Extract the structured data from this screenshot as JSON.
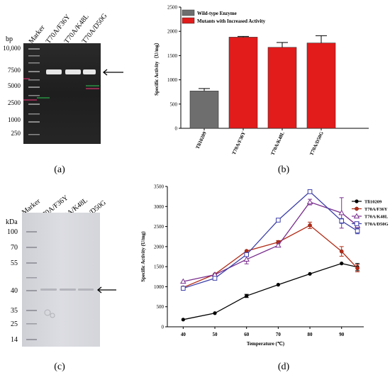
{
  "panels": {
    "a": {
      "caption": "(a)",
      "bp_label": "bp",
      "lane_labels": [
        "Marker",
        "T70A/F36Y",
        "T70A/K48L",
        "T70A/D50G"
      ],
      "marker_sizes": [
        "10,000",
        "7500",
        "5000",
        "2500",
        "1000",
        "250"
      ]
    },
    "b": {
      "caption": "(b)",
      "legend": [
        "Wild-type Enzyme",
        "Mutants with Increased Activity"
      ]
    },
    "c": {
      "caption": "(c)",
      "kda_label": "kDa",
      "lane_labels": [
        "Marker",
        "T70A/F36Y",
        "T70A/K48L",
        "T70A/D50G"
      ],
      "marker_sizes": [
        "100",
        "70",
        "55",
        "40",
        "35",
        "25",
        "14"
      ]
    },
    "d": {
      "caption": "(d)"
    }
  },
  "colors": {
    "wild": "#6e6e6e",
    "mutant": "#e21b1b",
    "s1": "#000000",
    "s2": "#b22c17",
    "s3": "#7a2f8f",
    "s4": "#3d3fa8"
  },
  "chart_data": [
    {
      "type": "bar",
      "categories": [
        "Tli10209",
        "T70A/F36Y",
        "T70A/K48L",
        "T70A/D50G"
      ],
      "values": [
        770,
        1880,
        1670,
        1760
      ],
      "errors": [
        50,
        15,
        100,
        150
      ],
      "ylabel": "Specific Activity（U/mg）",
      "xlabel": "",
      "title": "",
      "ylim": [
        0,
        2500
      ],
      "yticks": [
        0,
        500,
        1000,
        1500,
        2000,
        2500
      ],
      "legend": "top-left"
    },
    {
      "type": "line",
      "x": [
        40,
        50,
        60,
        70,
        80,
        90,
        95
      ],
      "xlabel": "Temperature (℃)",
      "ylabel": "Specific Activity (U/mg)",
      "title": "",
      "xlim": [
        35,
        97
      ],
      "ylim": [
        0,
        3500
      ],
      "xticks": [
        40,
        50,
        60,
        70,
        80,
        90
      ],
      "yticks": [
        0,
        500,
        1000,
        1500,
        2000,
        2500,
        3000,
        3500
      ],
      "legend": "top-right",
      "series": [
        {
          "name": "Tli10209",
          "values": [
            180,
            340,
            770,
            1050,
            1320,
            1580,
            1490
          ],
          "errors": [
            0,
            0,
            40,
            0,
            0,
            0,
            90
          ]
        },
        {
          "name": "T70A/F36Y",
          "values": [
            980,
            1310,
            1890,
            2110,
            2530,
            1880,
            1460
          ],
          "errors": [
            0,
            0,
            0,
            40,
            80,
            120,
            90
          ]
        },
        {
          "name": "T70A/K48L",
          "values": [
            1130,
            1300,
            1680,
            2030,
            3110,
            2840,
            2520
          ],
          "errors": [
            0,
            0,
            110,
            0,
            70,
            380,
            90
          ]
        },
        {
          "name": "T70A/D50G",
          "values": [
            960,
            1210,
            1800,
            2660,
            3370,
            2640,
            2390
          ],
          "errors": [
            0,
            0,
            0,
            0,
            0,
            60,
            70
          ]
        }
      ]
    }
  ]
}
